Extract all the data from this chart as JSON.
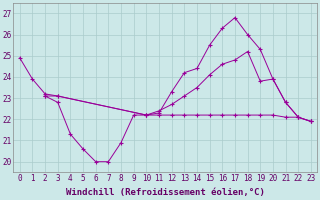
{
  "line1_x": [
    0,
    1,
    2,
    3,
    10,
    11,
    12,
    13,
    14,
    15,
    16,
    17,
    18,
    19,
    20,
    21,
    22,
    23
  ],
  "line1_y": [
    24.9,
    23.9,
    23.2,
    23.1,
    22.2,
    22.3,
    23.3,
    24.2,
    24.4,
    25.5,
    26.3,
    26.8,
    26.0,
    25.3,
    23.9,
    22.8,
    22.1,
    21.9
  ],
  "line2_x": [
    2,
    3,
    10,
    11,
    12,
    13,
    14,
    15,
    16,
    17,
    18,
    19,
    20,
    21,
    22,
    23
  ],
  "line2_y": [
    23.1,
    23.1,
    22.2,
    22.4,
    22.7,
    23.1,
    23.5,
    24.1,
    24.6,
    24.8,
    25.2,
    23.8,
    23.9,
    22.8,
    22.1,
    21.9
  ],
  "line3_x": [
    2,
    3,
    4,
    5,
    6,
    7,
    8,
    9,
    10,
    11,
    12,
    13,
    14,
    15,
    16,
    17,
    18,
    19,
    20,
    21,
    22,
    23
  ],
  "line3_y": [
    23.1,
    22.8,
    21.3,
    20.6,
    20.0,
    20.0,
    20.9,
    22.2,
    22.2,
    22.2,
    22.2,
    22.2,
    22.2,
    22.2,
    22.2,
    22.2,
    22.2,
    22.2,
    22.2,
    22.1,
    22.1,
    21.9
  ],
  "ylim": [
    19.5,
    27.5
  ],
  "xlim": [
    -0.5,
    23.5
  ],
  "yticks": [
    20,
    21,
    22,
    23,
    24,
    25,
    26,
    27
  ],
  "xticks": [
    0,
    1,
    2,
    3,
    4,
    5,
    6,
    7,
    8,
    9,
    10,
    11,
    12,
    13,
    14,
    15,
    16,
    17,
    18,
    19,
    20,
    21,
    22,
    23
  ],
  "xlabel": "Windchill (Refroidissement éolien,°C)",
  "bg_color": "#cce8e8",
  "grid_color": "#aacccc",
  "line_color": "#990099",
  "xlabel_fontsize": 6.5,
  "tick_fontsize": 5.5
}
